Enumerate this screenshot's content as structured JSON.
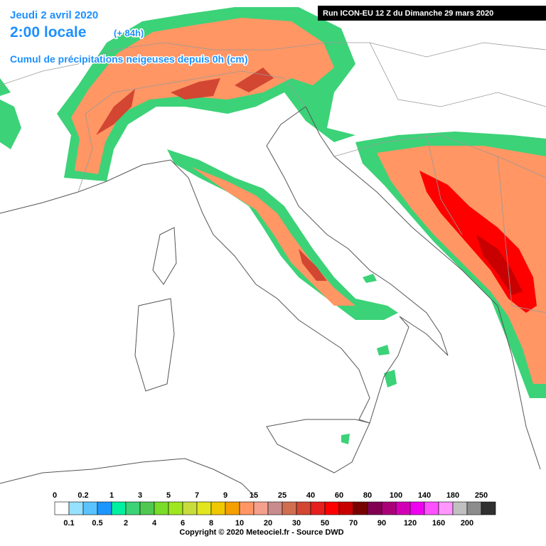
{
  "header": {
    "date": "Jeudi 2 avril 2020",
    "time": "2:00 locale",
    "lead": "(+ 84h)",
    "subtitle": "Cumul de précipitations neigeuses depuis 0h (cm)"
  },
  "run": "Run ICON-EU 12 Z du Dimanche 29 mars 2020",
  "legend": {
    "thresholds": [
      0,
      0.1,
      0.2,
      0.5,
      1,
      2,
      3,
      4,
      5,
      6,
      7,
      8,
      9,
      10,
      15,
      20,
      25,
      30,
      40,
      50,
      60,
      70,
      80,
      90,
      100,
      120,
      140,
      160,
      180,
      200,
      250
    ],
    "colors": [
      "#ffffff",
      "#96e1ff",
      "#5ac3ff",
      "#1e96ff",
      "#00f0a0",
      "#3cd278",
      "#50c850",
      "#78dc28",
      "#a0e61e",
      "#c8dc3c",
      "#e1e61e",
      "#f0c800",
      "#f5a000",
      "#ff9664",
      "#f5a08c",
      "#c88c8c",
      "#d26e50",
      "#d24632",
      "#e61e1e",
      "#ff0000",
      "#c80000",
      "#780000",
      "#820050",
      "#aa0078",
      "#d200b4",
      "#f000f0",
      "#ff50ff",
      "#ff96ff",
      "#c0c0c0",
      "#8c8c8c",
      "#303030"
    ]
  },
  "copyright": "Copyright © 2020 Meteociel.fr - Source DWD"
}
